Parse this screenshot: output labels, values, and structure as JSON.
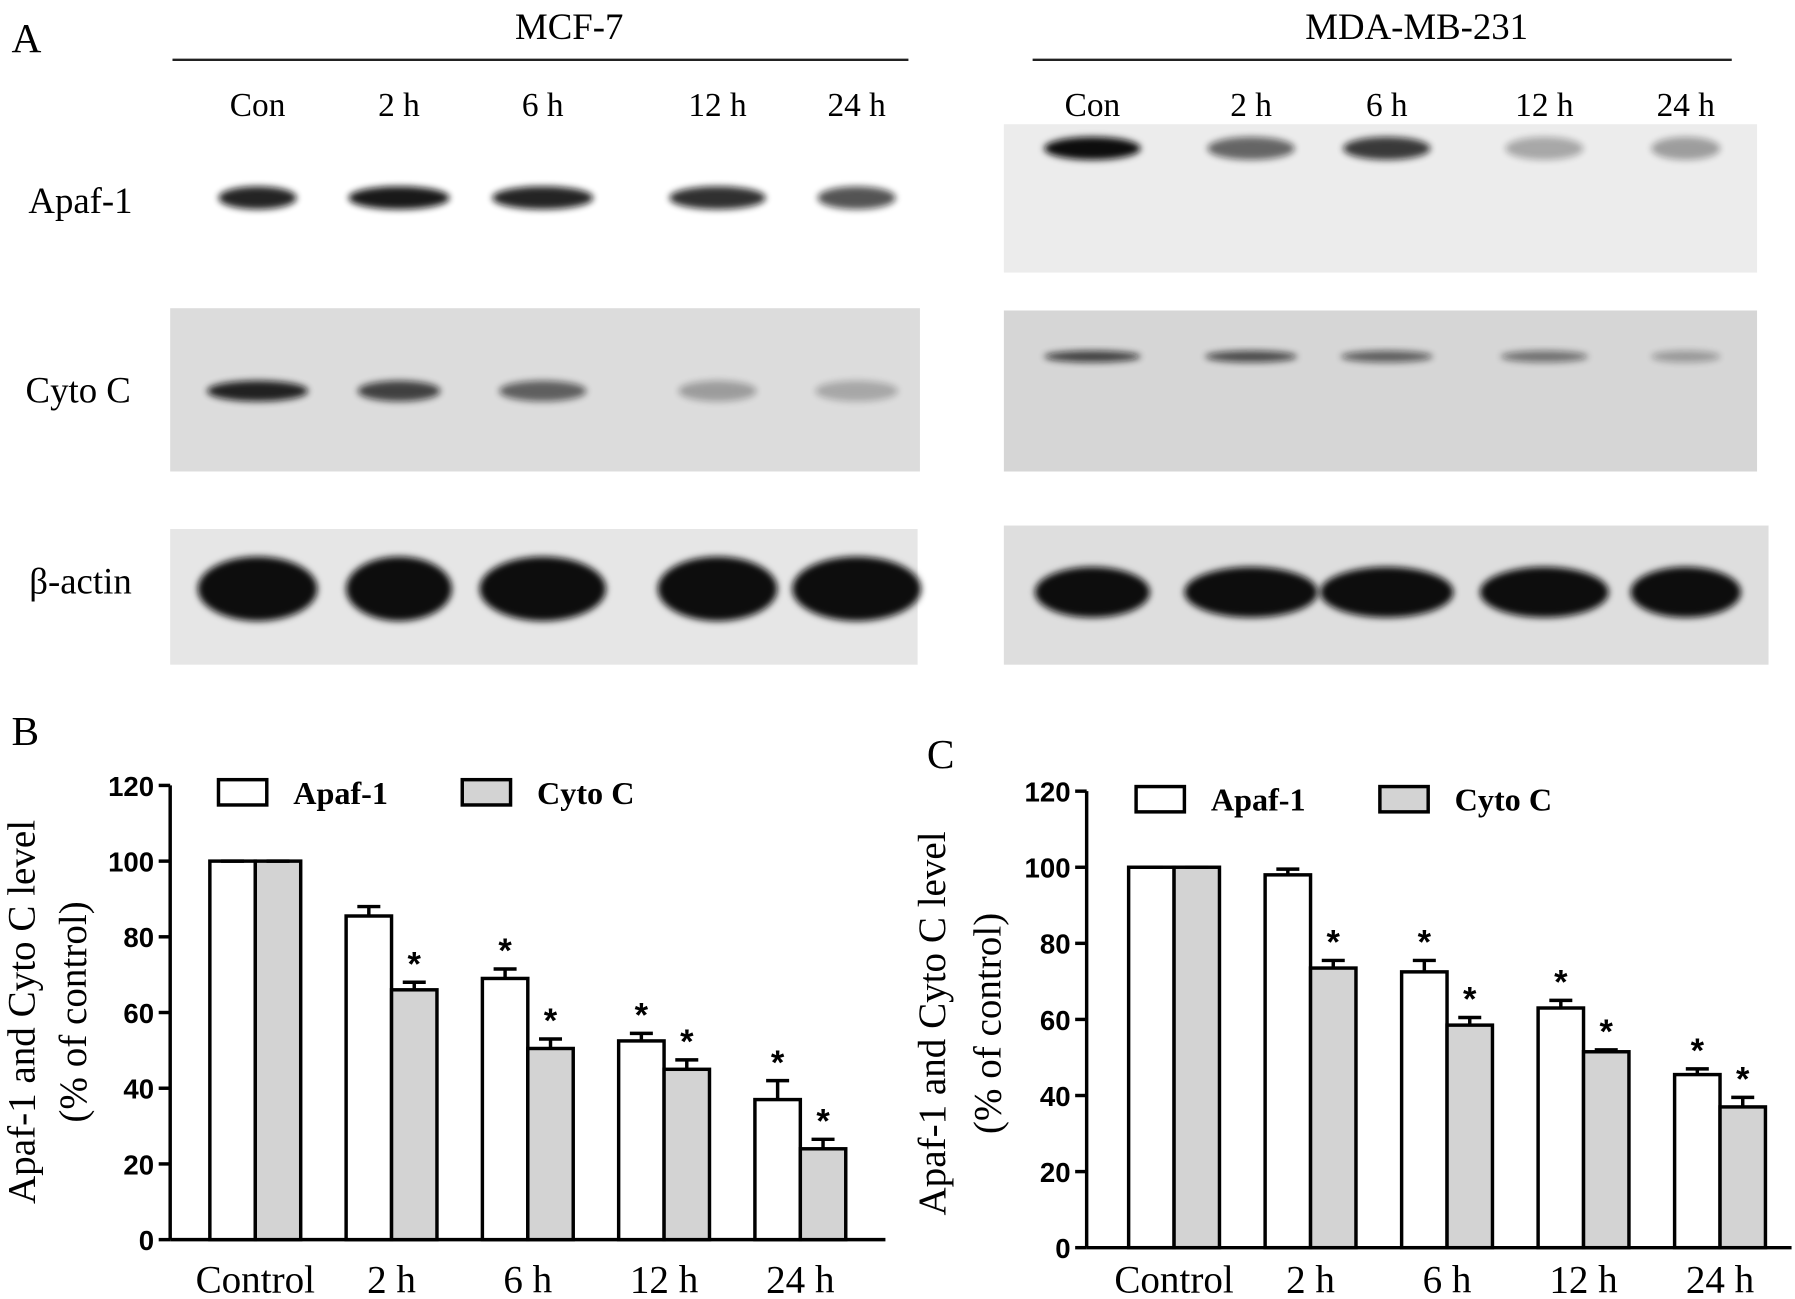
{
  "panel_labels": [
    "A",
    "B",
    "C"
  ],
  "blots": [
    {
      "title": "MCF-7",
      "lanes": [
        "Con",
        "2 h",
        "6 h",
        "12 h",
        "24 h"
      ],
      "rows": [
        "Apaf-1",
        "Cyto C",
        "β-actin"
      ]
    },
    {
      "title": "MDA-MB-231",
      "lanes": [
        "Con",
        "2 h",
        "6 h",
        "12 h",
        "24 h"
      ]
    }
  ],
  "chart_data": [
    {
      "type": "bar",
      "y_label": [
        "Apaf-1 and Cyto C level",
        "(% of control)"
      ],
      "categories": [
        "Control",
        "2 h",
        "6 h",
        "12 h",
        "24 h"
      ],
      "series": [
        {
          "name": "Apaf-1",
          "color": "#ffffff",
          "values": [
            100,
            85.5,
            69,
            52.5,
            37
          ],
          "errors": [
            0,
            2.5,
            2.5,
            2,
            5
          ],
          "significance": [
            null,
            null,
            "*",
            "*",
            "*"
          ]
        },
        {
          "name": "Cyto C",
          "color": "#d3d3d3",
          "values": [
            100,
            66,
            50.5,
            45,
            24
          ],
          "errors": [
            0,
            2,
            2.5,
            2.5,
            2.5
          ],
          "significance": [
            null,
            "*",
            "*",
            "*",
            "*"
          ]
        }
      ],
      "ylim": [
        0,
        120
      ],
      "yticks": [
        0,
        20,
        40,
        60,
        80,
        100,
        120
      ],
      "legend": "top-left"
    },
    {
      "type": "bar",
      "y_label": [
        "Apaf-1 and Cyto C level",
        "(% of control)"
      ],
      "categories": [
        "Control",
        "2 h",
        "6 h",
        "12 h",
        "24 h"
      ],
      "series": [
        {
          "name": "Apaf-1",
          "color": "#ffffff",
          "values": [
            100,
            98,
            72.5,
            63,
            45.5
          ],
          "errors": [
            0,
            1.5,
            3,
            2,
            1.5
          ],
          "significance": [
            null,
            null,
            "*",
            "*",
            "*"
          ]
        },
        {
          "name": "Cyto C",
          "color": "#d3d3d3",
          "values": [
            100,
            73.5,
            58.5,
            51.5,
            37
          ],
          "errors": [
            0,
            2,
            2,
            0.5,
            2.5
          ],
          "significance": [
            null,
            "*",
            "*",
            "*",
            "*"
          ]
        }
      ],
      "ylim": [
        0,
        120
      ],
      "yticks": [
        0,
        20,
        40,
        60,
        80,
        100,
        120
      ],
      "legend": "top-left"
    }
  ]
}
